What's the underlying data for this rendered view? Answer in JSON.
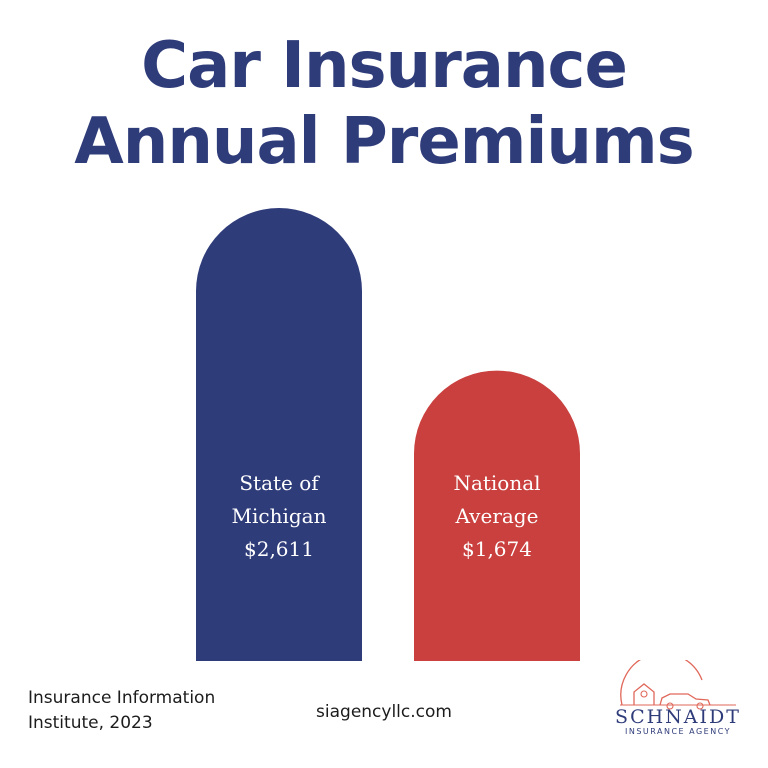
{
  "title": {
    "line1": "Car Insurance",
    "line2": "Annual Premiums"
  },
  "chart_data": {
    "type": "bar",
    "title": "Car Insurance Annual Premiums",
    "categories": [
      "State of Michigan",
      "National Average"
    ],
    "values": [
      2611,
      1674
    ],
    "value_labels": [
      "$2,611",
      "$1,674"
    ],
    "bars": [
      {
        "label_lines": [
          "State of",
          "Michigan",
          "$2,611"
        ],
        "color": "#2f3c7a"
      },
      {
        "label_lines": [
          "National",
          "Average",
          "$1,674"
        ],
        "color": "#c9403e"
      }
    ],
    "xlabel": "",
    "ylabel": "",
    "grid": false
  },
  "source": {
    "line1": "Insurance Information",
    "line2": "Institute, 2023"
  },
  "website": "siagencyllc.com",
  "logo": {
    "name": "SCHNAIDT",
    "subtitle": "INSURANCE AGENCY",
    "color": "#2f3c7a",
    "accent": "#e0675a"
  },
  "colors": {
    "title": "#2f3c7a",
    "michigan": "#2f3c7a",
    "national": "#c9403e"
  }
}
